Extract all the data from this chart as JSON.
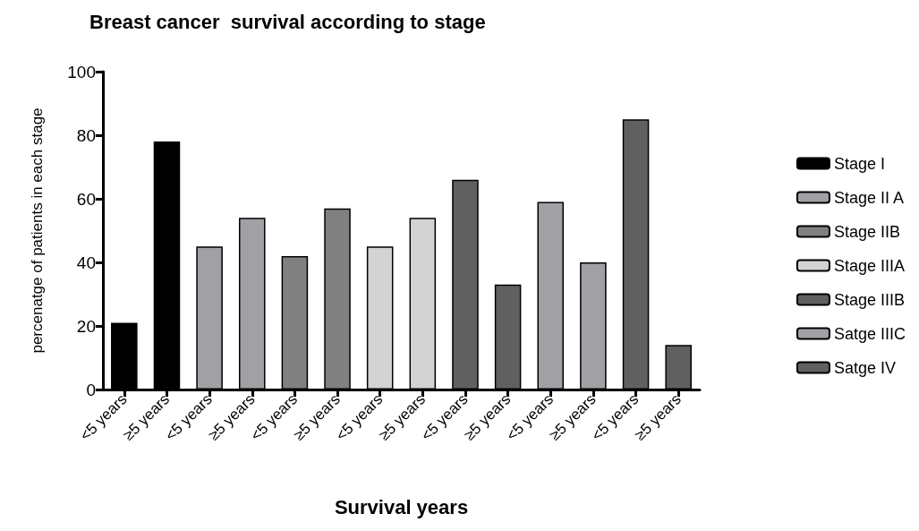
{
  "chart_data": {
    "type": "bar",
    "title": "Breast cancer  survival according to stage",
    "xlabel": "Survival years",
    "ylabel": "percenatge of patients in each stage",
    "categories": [
      "<5 years",
      "≥5 years",
      "<5 years",
      "≥5 years",
      "<5 years",
      "≥5 years",
      "<5 years",
      "≥5 years",
      "<5 years",
      "≥5 years",
      "<5 years",
      "≥5 years",
      "<5 years",
      "≥5 years"
    ],
    "series": [
      {
        "name": "Stage I",
        "color": "#000000",
        "values": [
          21,
          78,
          null,
          null,
          null,
          null,
          null,
          null,
          null,
          null,
          null,
          null,
          null,
          null
        ]
      },
      {
        "name": "Stage II A",
        "color": "#a0a0a5",
        "values": [
          null,
          null,
          45,
          54,
          null,
          null,
          null,
          null,
          null,
          null,
          null,
          null,
          null,
          null
        ]
      },
      {
        "name": "Stage IIB",
        "color": "#808080",
        "values": [
          null,
          null,
          null,
          null,
          42,
          57,
          null,
          null,
          null,
          null,
          null,
          null,
          null,
          null
        ]
      },
      {
        "name": "Stage IIIA",
        "color": "#d3d3d3",
        "values": [
          null,
          null,
          null,
          null,
          null,
          null,
          45,
          54,
          null,
          null,
          null,
          null,
          null,
          null
        ]
      },
      {
        "name": "Stage IIIB",
        "color": "#606060",
        "values": [
          null,
          null,
          null,
          null,
          null,
          null,
          null,
          null,
          66,
          33,
          null,
          null,
          null,
          null
        ]
      },
      {
        "name": "Satge IIIC",
        "color": "#a0a0a5",
        "values": [
          null,
          null,
          null,
          null,
          null,
          null,
          null,
          null,
          null,
          null,
          59,
          40,
          null,
          null
        ]
      },
      {
        "name": "Satge IV",
        "color": "#606060",
        "values": [
          null,
          null,
          null,
          null,
          null,
          null,
          null,
          null,
          null,
          null,
          null,
          null,
          85,
          14
        ]
      }
    ],
    "ylim": [
      0,
      100
    ],
    "yticks": [
      0,
      20,
      40,
      60,
      80,
      100
    ],
    "grid": false,
    "legend": "right"
  }
}
